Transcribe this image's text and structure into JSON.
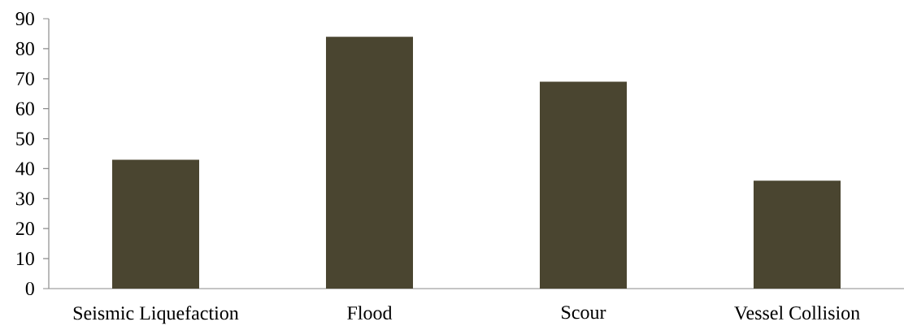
{
  "chart_data": {
    "type": "bar",
    "categories": [
      "Seismic Liquefaction",
      "Flood",
      "Scour",
      "Vessel Collision"
    ],
    "values": [
      43,
      84,
      69,
      36
    ],
    "color": "#4a4530",
    "ylim": [
      0,
      90
    ],
    "yticks": [
      0,
      10,
      20,
      30,
      40,
      50,
      60,
      70,
      80,
      90
    ],
    "grid": false
  }
}
